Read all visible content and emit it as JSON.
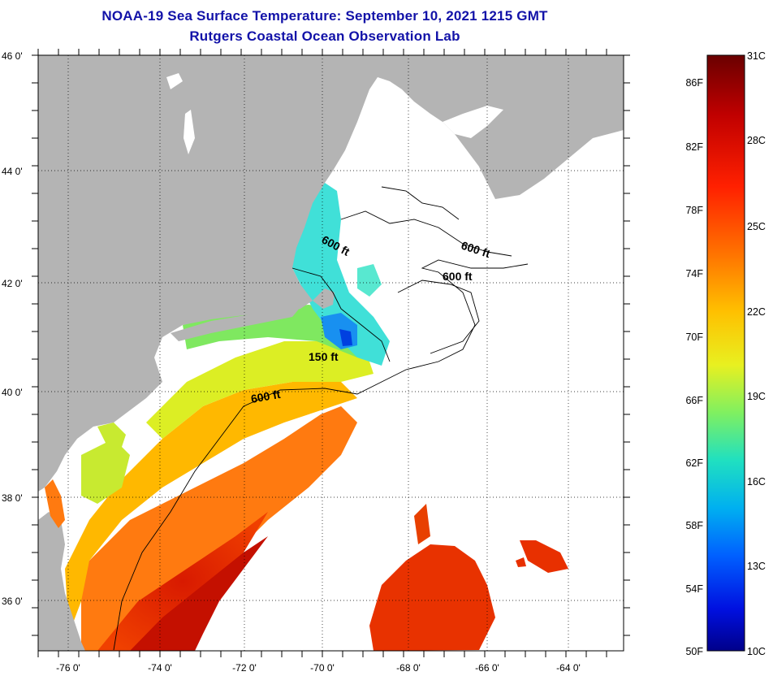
{
  "title": {
    "line1": "NOAA-19 Sea Surface Temperature:  September 10, 2021 1215 GMT",
    "line2": "Rutgers Coastal Ocean Observation Lab"
  },
  "axes": {
    "lon_ticks": [
      "-76 0'",
      "-74 0'",
      "-72 0'",
      "-70 0'",
      "-68 0'",
      "-66 0'",
      "-64 0'"
    ],
    "lat_ticks": [
      "46 0'",
      "44 0'",
      "42 0'",
      "40 0'",
      "38 0'",
      "36 0'"
    ]
  },
  "contours": [
    "600 ft",
    "600 ft",
    "600 ft",
    "150 ft",
    "600 ft"
  ],
  "colorbar": {
    "fahrenheit": [
      "86F",
      "82F",
      "78F",
      "74F",
      "70F",
      "66F",
      "62F",
      "58F",
      "54F",
      "50F"
    ],
    "celsius": [
      "31C",
      "28C",
      "25C",
      "22C",
      "19C",
      "16C",
      "13C",
      "10C"
    ],
    "colors": [
      "#6a0000",
      "#c00000",
      "#ff2000",
      "#ff7000",
      "#ffc000",
      "#e8f020",
      "#80f060",
      "#20e0c0",
      "#00b0f0",
      "#0060ff",
      "#0010e0",
      "#00008a"
    ]
  },
  "colors": {
    "land": "#b4b4b4",
    "title": "#1212a8"
  }
}
